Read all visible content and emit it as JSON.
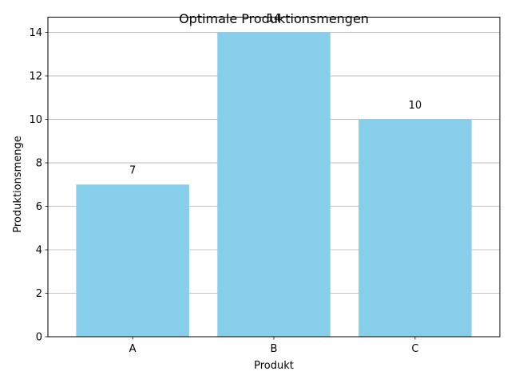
{
  "chart_data": {
    "type": "bar",
    "title": "Optimale Produktionsmengen",
    "xlabel": "Produkt",
    "ylabel": "Produktionsmenge",
    "categories": [
      "A",
      "B",
      "C"
    ],
    "values": [
      7,
      14,
      10
    ],
    "data_labels": [
      "7",
      "14",
      "10"
    ],
    "yticks": [
      0,
      2,
      4,
      6,
      8,
      10,
      12,
      14
    ],
    "ylim": [
      0,
      14.7
    ],
    "grid": "y",
    "bar_color": "#87ceeb",
    "grid_color": "#b0b0b0"
  }
}
